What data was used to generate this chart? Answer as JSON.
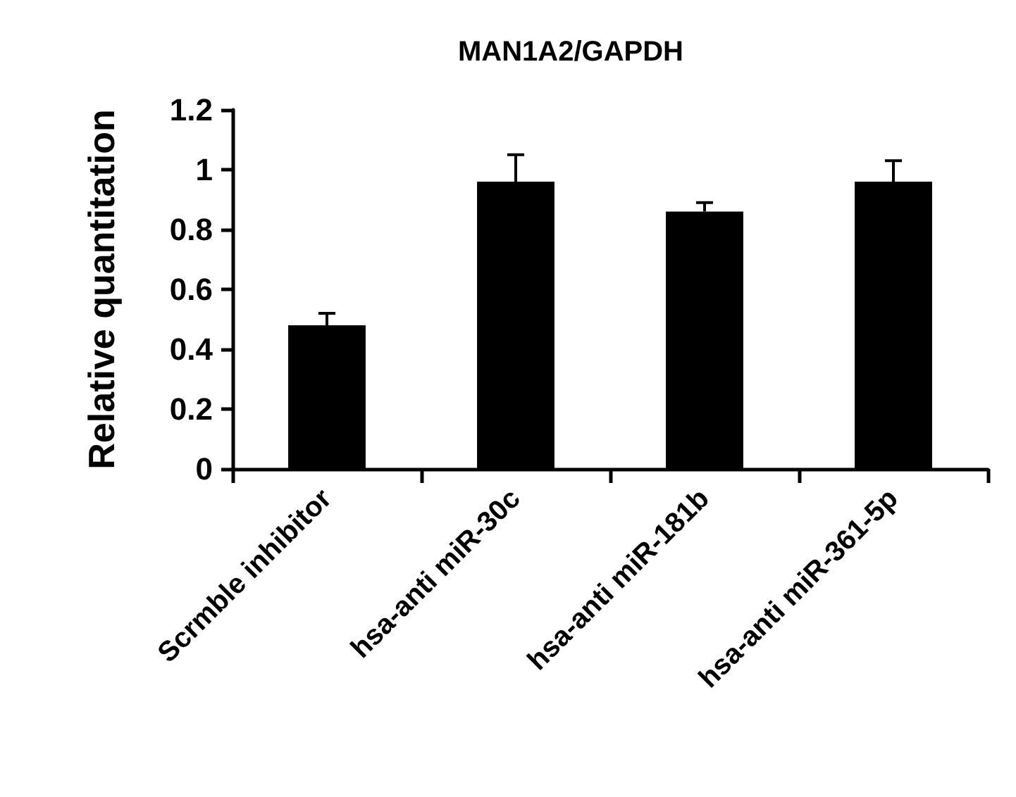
{
  "chart_data": {
    "type": "bar",
    "title": "MAN1A2/GAPDH",
    "ylabel": "Relative quantitation",
    "categories": [
      "Scrmble inhibitor",
      "hsa-anti miR-30c",
      "hsa-anti miR-181b",
      "hsa-anti miR-361-5p"
    ],
    "values": [
      0.48,
      0.96,
      0.86,
      0.96
    ],
    "color": "#000000",
    "errors": [
      [
        0.48,
        0.52
      ],
      [
        0.96,
        1.05
      ],
      [
        0.86,
        0.89
      ],
      [
        0.96,
        1.03
      ]
    ],
    "ylim": [
      0,
      1.2
    ],
    "yticks": [
      0,
      0.2,
      0.4,
      0.6,
      0.8,
      1,
      1.2
    ],
    "grid": false
  }
}
